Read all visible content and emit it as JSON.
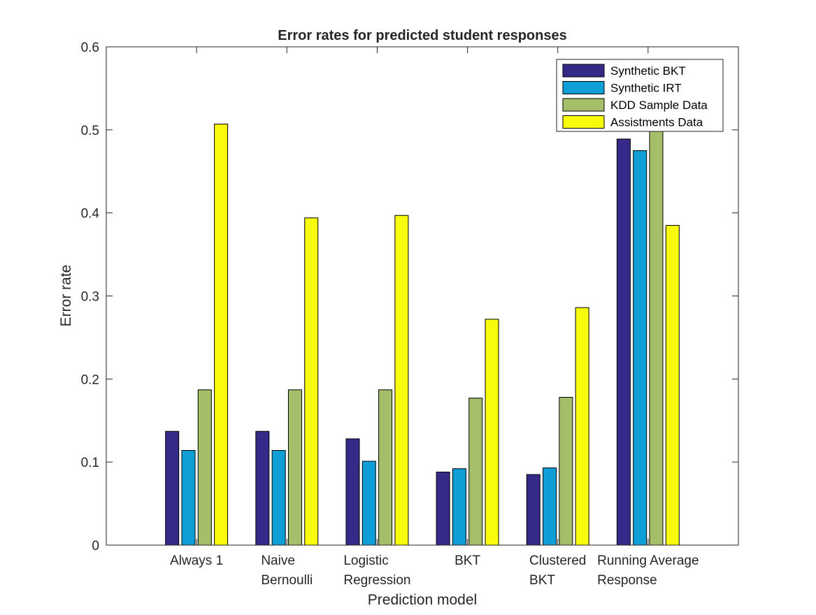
{
  "chart_data": {
    "type": "bar",
    "title": "Error rates for predicted student responses",
    "xlabel": "Prediction model",
    "ylabel": "Error rate",
    "ylim": [
      0,
      0.6
    ],
    "yticks": [
      "0",
      "0.1",
      "0.2",
      "0.3",
      "0.4",
      "0.5",
      "0.6"
    ],
    "categories": [
      [
        "Always 1"
      ],
      [
        "Naive",
        "Bernoulli"
      ],
      [
        "Logistic",
        "Regression"
      ],
      [
        "BKT"
      ],
      [
        "Clustered",
        "BKT"
      ],
      [
        "Running Average",
        "Response"
      ]
    ],
    "series": [
      {
        "name": "Synthetic BKT",
        "color": "#352a87",
        "values": [
          0.137,
          0.137,
          0.128,
          0.088,
          0.085,
          0.489
        ]
      },
      {
        "name": "Synthetic IRT",
        "color": "#0f9ed5",
        "values": [
          0.114,
          0.114,
          0.101,
          0.092,
          0.093,
          0.475
        ]
      },
      {
        "name": "KDD Sample Data",
        "color": "#a5be6a",
        "values": [
          0.187,
          0.187,
          0.187,
          0.177,
          0.178,
          0.52
        ]
      },
      {
        "name": "Assistments Data",
        "color": "#f9fb0e",
        "values": [
          0.507,
          0.394,
          0.397,
          0.272,
          0.286,
          0.385
        ]
      }
    ],
    "legend_position": "top-right",
    "grid": false
  }
}
